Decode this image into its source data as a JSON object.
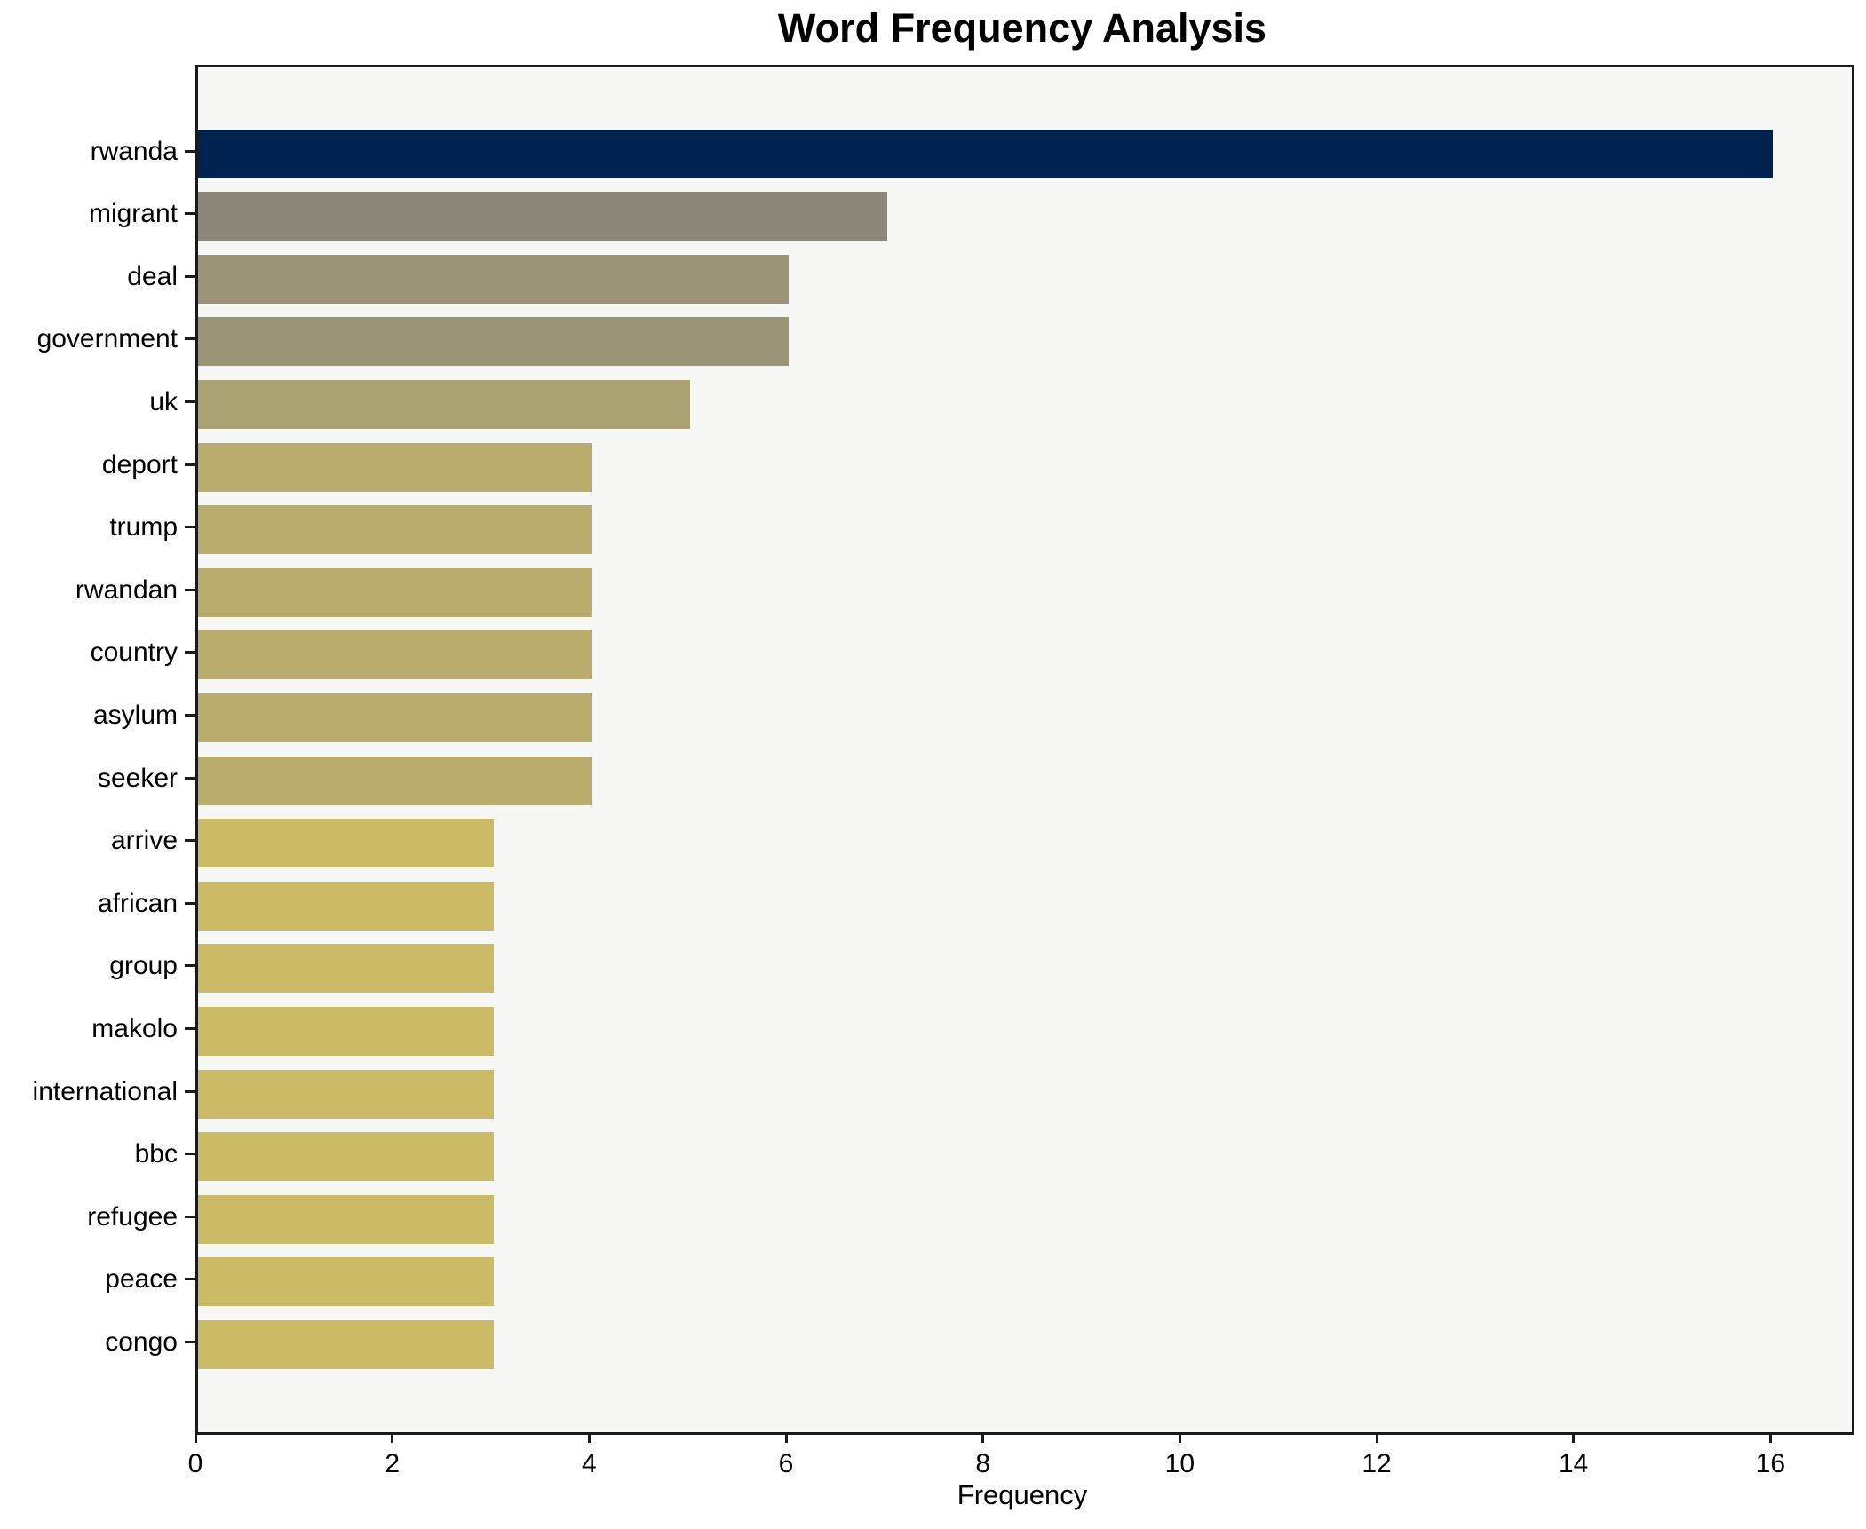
{
  "chart_data": {
    "type": "bar",
    "orientation": "horizontal",
    "title": "Word Frequency Analysis",
    "xlabel": "Frequency",
    "ylabel": "",
    "categories": [
      "rwanda",
      "migrant",
      "deal",
      "government",
      "uk",
      "deport",
      "trump",
      "rwandan",
      "country",
      "asylum",
      "seeker",
      "arrive",
      "african",
      "group",
      "makolo",
      "international",
      "bbc",
      "refugee",
      "peace",
      "congo"
    ],
    "values": [
      16,
      7,
      6,
      6,
      5,
      4,
      4,
      4,
      4,
      4,
      4,
      3,
      3,
      3,
      3,
      3,
      3,
      3,
      3,
      3
    ],
    "bar_colors": [
      "#00224e",
      "#8a8678",
      "#9b9476",
      "#9b9476",
      "#aba273",
      "#b9ac6c",
      "#b9ac6c",
      "#b9ac6c",
      "#b9ac6c",
      "#b9ac6c",
      "#b9ac6c",
      "#cbbb66",
      "#cbbb66",
      "#cbbb66",
      "#cbbb66",
      "#cbbb66",
      "#cbbb66",
      "#cbbb66",
      "#cbbb66",
      "#cbbb66"
    ],
    "xticks": [
      0,
      2,
      4,
      6,
      8,
      10,
      12,
      14,
      16
    ],
    "xlim": [
      0,
      16.8
    ],
    "grid": false,
    "legend": null,
    "plot_background": "#f7f7f5",
    "figure_background": "#ffffff",
    "spine_color": "#1a1a1a",
    "bar_height_fraction": 0.78
  }
}
